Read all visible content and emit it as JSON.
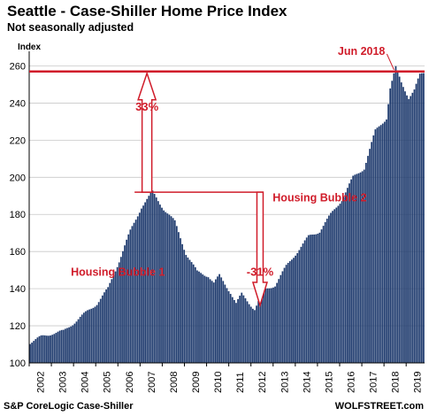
{
  "title": "Seattle - Case-Shiller Home Price Index",
  "subtitle": "Not seasonally adjusted",
  "source": "S&P CoreLogic Case-Shiller",
  "brand": "WOLFSTREET.com",
  "colors": {
    "bar": "#1f3b6e",
    "accent": "#d01c2a",
    "grid": "#c8c8c8"
  },
  "chart_data": {
    "type": "bar",
    "ylabel": "Index",
    "ylim": [
      100,
      265
    ],
    "yticks": [
      100,
      120,
      140,
      160,
      180,
      200,
      220,
      240,
      260
    ],
    "xticks": [
      "2002",
      "2003",
      "2004",
      "2005",
      "2006",
      "2007",
      "2008",
      "2009",
      "2010",
      "2011",
      "2012",
      "2013",
      "2014",
      "2015",
      "2016",
      "2017",
      "2018",
      "2019"
    ],
    "grid": true,
    "series": [
      {
        "frequency": "monthly",
        "start": "2002-01",
        "anchors": [
          [
            "2002-01",
            111
          ],
          [
            "2002-07",
            114
          ],
          [
            "2003-01",
            116
          ],
          [
            "2003-07",
            117
          ],
          [
            "2004-01",
            122
          ],
          [
            "2004-07",
            127
          ],
          [
            "2005-01",
            132
          ],
          [
            "2005-07",
            140
          ],
          [
            "2006-01",
            155
          ],
          [
            "2006-07",
            171
          ],
          [
            "2007-01",
            184
          ],
          [
            "2007-07",
            192
          ],
          [
            "2008-01",
            183
          ],
          [
            "2008-07",
            176
          ],
          [
            "2009-01",
            159
          ],
          [
            "2009-07",
            149
          ],
          [
            "2010-01",
            147
          ],
          [
            "2010-04",
            143
          ],
          [
            "2010-07",
            147
          ],
          [
            "2011-01",
            138
          ],
          [
            "2011-04",
            132
          ],
          [
            "2011-07",
            137
          ],
          [
            "2012-01",
            130
          ],
          [
            "2012-02",
            129
          ],
          [
            "2012-07",
            139
          ],
          [
            "2013-01",
            142
          ],
          [
            "2013-07",
            152
          ],
          [
            "2014-01",
            160
          ],
          [
            "2014-07",
            168
          ],
          [
            "2015-01",
            171
          ],
          [
            "2015-07",
            180
          ],
          [
            "2016-01",
            188
          ],
          [
            "2016-07",
            200
          ],
          [
            "2017-01",
            205
          ],
          [
            "2017-07",
            225
          ],
          [
            "2018-01",
            232
          ],
          [
            "2018-03",
            248
          ],
          [
            "2018-06",
            259
          ],
          [
            "2018-09",
            251
          ],
          [
            "2019-01",
            243
          ],
          [
            "2019-04",
            247
          ],
          [
            "2019-07",
            255
          ],
          [
            "2019-09",
            256
          ]
        ]
      }
    ],
    "reference_line": {
      "value": 257
    },
    "annotations": [
      {
        "text": "Jun 2018"
      },
      {
        "text": "33%"
      },
      {
        "text": "-31%"
      },
      {
        "text": "Housing Bubble 1"
      },
      {
        "text": "Housing Bubble 2"
      }
    ]
  }
}
